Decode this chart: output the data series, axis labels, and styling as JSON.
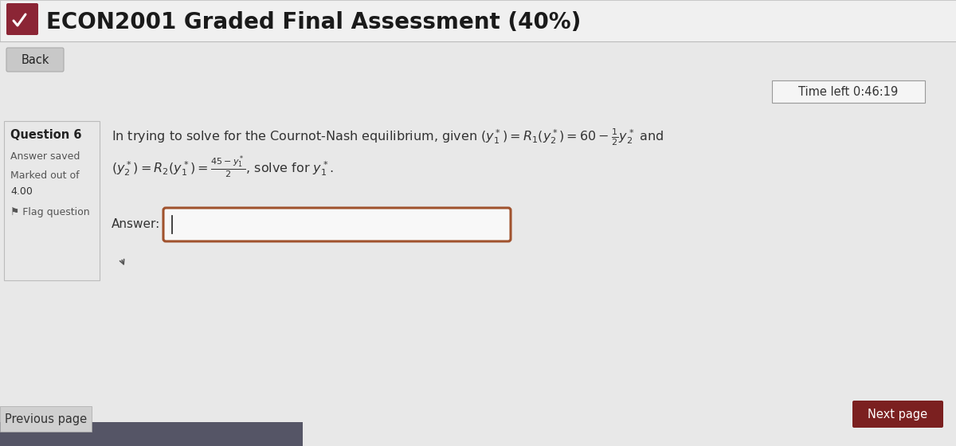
{
  "title": "ECON2001 Graded Final Assessment (40%)",
  "bg_color": "#dcdcdc",
  "header_bg": "#f0f0f0",
  "header_text_color": "#1a1a1a",
  "header_font_size": 20,
  "back_btn_text": "Back",
  "back_btn_bg": "#c8c8c8",
  "back_btn_text_color": "#222222",
  "time_left_text": "Time left 0:46:19",
  "question_label": "Question 6",
  "answer_saved": "Answer saved",
  "marked_out_of": "Marked out of",
  "marks": "4.00",
  "flag_question": "Flag question",
  "question_line1": "In trying to solve for the Cournot-Nash equilibrium, given $(y_1^*) = R_1(y_2^*) = 60 - \\frac{1}{2}y_2^*$ and",
  "question_line2": "$(y_2^*) = R_2(y_1^*) = \\frac{45-y_1^*}{2}$, solve for $y_1^*$.",
  "answer_label": "Answer:",
  "answer_box_border": "#a0522d",
  "next_page_text": "Next page",
  "next_btn_bg": "#7b2020",
  "next_btn_text_color": "#ffffff",
  "prev_page_text": "Previous page",
  "icon_color": "#8b2535",
  "sidebar_bg": "#e8e8e8",
  "sidebar_border": "#bbbbbb",
  "main_bg": "#e8e8e8",
  "time_box_bg": "#f5f5f5",
  "time_box_border": "#999999",
  "dark_bar_color": "#555566",
  "dark_bar_width": 380
}
